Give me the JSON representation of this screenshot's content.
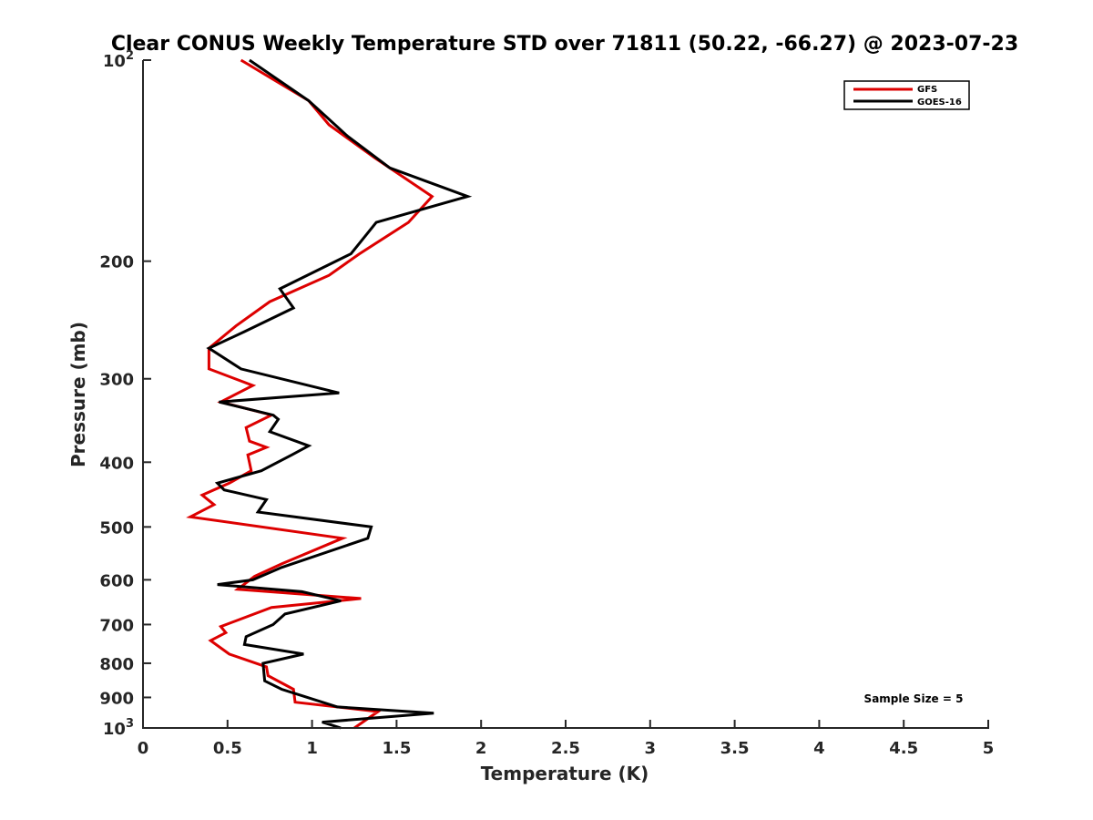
{
  "chart_data": {
    "type": "line",
    "title": "Clear CONUS Weekly Temperature STD over 71811 (50.22, -66.27) @ 2023-07-23",
    "xlabel": "Temperature (K)",
    "ylabel": "Pressure (mb)",
    "xlim": [
      0,
      5
    ],
    "ylim": [
      100,
      1000
    ],
    "y_scale": "log",
    "y_reversed": true,
    "x_ticks": [
      "0",
      "0.5",
      "1",
      "1.5",
      "2",
      "2.5",
      "3",
      "3.5",
      "4",
      "4.5",
      "5"
    ],
    "y_ticks": [
      {
        "value": 100,
        "base": "10",
        "exp": "2"
      },
      {
        "value": 200,
        "label": "200"
      },
      {
        "value": 300,
        "label": "300"
      },
      {
        "value": 400,
        "label": "400"
      },
      {
        "value": 500,
        "label": "500"
      },
      {
        "value": 600,
        "label": "600"
      },
      {
        "value": 700,
        "label": "700"
      },
      {
        "value": 800,
        "label": "800"
      },
      {
        "value": 900,
        "label": "900"
      },
      {
        "value": 1000,
        "base": "10",
        "exp": "3"
      }
    ],
    "grid": false,
    "legend": {
      "placement": "top-right"
    },
    "annotation": "Sample Size = 5",
    "series": [
      {
        "name": "GFS",
        "color": "#dd0000",
        "points": [
          [
            0.58,
            100
          ],
          [
            0.98,
            115
          ],
          [
            1.1,
            125
          ],
          [
            1.37,
            140
          ],
          [
            1.71,
            160
          ],
          [
            1.57,
            175
          ],
          [
            1.28,
            195
          ],
          [
            1.1,
            210
          ],
          [
            0.75,
            230
          ],
          [
            0.55,
            250
          ],
          [
            0.39,
            270
          ],
          [
            0.39,
            290
          ],
          [
            0.65,
            307
          ],
          [
            0.46,
            325
          ],
          [
            0.76,
            340
          ],
          [
            0.61,
            355
          ],
          [
            0.63,
            372
          ],
          [
            0.73,
            380
          ],
          [
            0.62,
            390
          ],
          [
            0.64,
            412
          ],
          [
            0.51,
            430
          ],
          [
            0.35,
            448
          ],
          [
            0.42,
            463
          ],
          [
            0.28,
            483
          ],
          [
            1.18,
            520
          ],
          [
            0.82,
            568
          ],
          [
            0.66,
            593
          ],
          [
            0.56,
            620
          ],
          [
            1.29,
            640
          ],
          [
            0.76,
            660
          ],
          [
            0.46,
            705
          ],
          [
            0.49,
            720
          ],
          [
            0.4,
            740
          ],
          [
            0.51,
            775
          ],
          [
            0.73,
            810
          ],
          [
            0.74,
            835
          ],
          [
            0.89,
            875
          ],
          [
            0.9,
            915
          ],
          [
            1.39,
            945
          ],
          [
            1.25,
            1000
          ]
        ]
      },
      {
        "name": "GOES-16",
        "color": "#000000",
        "points": [
          [
            0.63,
            100
          ],
          [
            0.98,
            115
          ],
          [
            1.21,
            130
          ],
          [
            1.46,
            145
          ],
          [
            1.92,
            160
          ],
          [
            1.38,
            175
          ],
          [
            1.23,
            195
          ],
          [
            0.81,
            220
          ],
          [
            0.89,
            235
          ],
          [
            0.6,
            255
          ],
          [
            0.39,
            270
          ],
          [
            0.58,
            290
          ],
          [
            1.16,
            315
          ],
          [
            0.45,
            325
          ],
          [
            0.77,
            340
          ],
          [
            0.8,
            345
          ],
          [
            0.75,
            360
          ],
          [
            0.98,
            378
          ],
          [
            0.88,
            390
          ],
          [
            0.7,
            412
          ],
          [
            0.44,
            430
          ],
          [
            0.48,
            440
          ],
          [
            0.73,
            455
          ],
          [
            0.68,
            475
          ],
          [
            1.35,
            500
          ],
          [
            1.33,
            520
          ],
          [
            0.82,
            575
          ],
          [
            0.65,
            600
          ],
          [
            0.44,
            610
          ],
          [
            0.94,
            625
          ],
          [
            1.17,
            645
          ],
          [
            0.84,
            675
          ],
          [
            0.77,
            700
          ],
          [
            0.61,
            730
          ],
          [
            0.6,
            750
          ],
          [
            0.95,
            775
          ],
          [
            0.71,
            800
          ],
          [
            0.72,
            850
          ],
          [
            0.82,
            875
          ],
          [
            1.15,
            930
          ],
          [
            1.72,
            950
          ],
          [
            1.06,
            980
          ],
          [
            1.17,
            1000
          ]
        ]
      }
    ]
  }
}
